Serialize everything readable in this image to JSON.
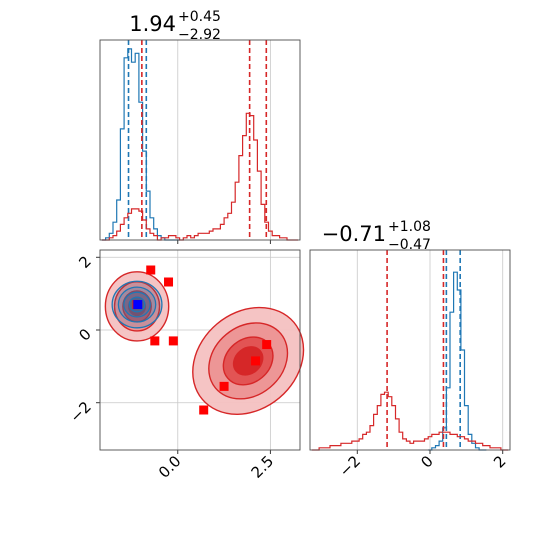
{
  "chart_data": [
    {
      "panel": "marginal-top-left",
      "type": "histogram",
      "title_value": "1.94",
      "title_upper": "+0.45",
      "title_lower": "−2.92",
      "xlim": [
        -2.1,
        3.3
      ],
      "grid": true,
      "series": [
        {
          "color": "#1f77b4",
          "bin_centers": [
            -2.0,
            -1.9,
            -1.8,
            -1.7,
            -1.6,
            -1.5,
            -1.4,
            -1.3,
            -1.2,
            -1.1,
            -1.0,
            -0.9,
            -0.8,
            -0.7,
            -0.6,
            -0.5,
            -0.4,
            -0.3,
            -0.2,
            -0.1,
            0.0
          ],
          "heights": [
            0.0,
            0.01,
            0.03,
            0.08,
            0.18,
            0.5,
            0.82,
            0.86,
            0.8,
            0.84,
            0.62,
            0.4,
            0.22,
            0.1,
            0.05,
            0.02,
            0.01,
            0.0,
            0.0,
            0.0,
            0.0
          ],
          "vlines": [
            -1.33,
            -0.85
          ]
        },
        {
          "color": "#d62728",
          "bin_centers": [
            -2.0,
            -1.9,
            -1.8,
            -1.7,
            -1.6,
            -1.5,
            -1.4,
            -1.3,
            -1.2,
            -1.1,
            -1.0,
            -0.9,
            -0.8,
            -0.7,
            -0.6,
            -0.5,
            -0.4,
            -0.3,
            -0.2,
            -0.1,
            0.0,
            0.1,
            0.2,
            0.3,
            0.4,
            0.5,
            0.6,
            0.7,
            0.8,
            0.9,
            1.0,
            1.1,
            1.2,
            1.3,
            1.4,
            1.5,
            1.6,
            1.7,
            1.8,
            1.9,
            2.0,
            2.1,
            2.2,
            2.3,
            2.4,
            2.5,
            2.6,
            2.7,
            2.8,
            2.9,
            3.0,
            3.1,
            3.2
          ],
          "heights": [
            0.0,
            0.0,
            0.01,
            0.02,
            0.04,
            0.07,
            0.1,
            0.12,
            0.14,
            0.14,
            0.13,
            0.09,
            0.05,
            0.03,
            0.02,
            0.0,
            0.01,
            0.01,
            0.02,
            0.02,
            0.01,
            0.0,
            0.01,
            0.02,
            0.01,
            0.02,
            0.03,
            0.03,
            0.03,
            0.04,
            0.05,
            0.05,
            0.07,
            0.1,
            0.12,
            0.17,
            0.26,
            0.38,
            0.47,
            0.57,
            0.56,
            0.45,
            0.31,
            0.16,
            0.08,
            0.04,
            0.02,
            0.02,
            0.01,
            0.01,
            0.0,
            0.0,
            0.0
          ],
          "vlines": [
            -0.97,
            1.94,
            2.39
          ]
        }
      ]
    },
    {
      "panel": "joint-bottom-left",
      "type": "contour",
      "xlim": [
        -2.1,
        3.3
      ],
      "ylim": [
        -3.3,
        2.2
      ],
      "xticks": [
        0.0,
        2.5
      ],
      "xtick_labels": [
        "0.0",
        "2.5"
      ],
      "yticks": [
        2,
        0,
        -2
      ],
      "ytick_labels": [
        "2",
        "0",
        "−2"
      ],
      "grid": true,
      "red_blob_upper": {
        "center": [
          -1.1,
          0.65
        ],
        "sx": 0.45,
        "sy": 0.5
      },
      "red_blob_lower": {
        "center": [
          1.9,
          -0.85
        ],
        "sx": 0.85,
        "sy": 0.7,
        "tilt_deg": 40
      },
      "blue_contour": {
        "center": [
          -1.1,
          0.7
        ],
        "sx": 0.42,
        "sy": 0.4
      },
      "red_markers": [
        [
          -0.73,
          1.65
        ],
        [
          -0.25,
          1.32
        ],
        [
          -1.1,
          0.7
        ],
        [
          -0.62,
          -0.3
        ],
        [
          -0.12,
          -0.3
        ],
        [
          2.1,
          -0.85
        ],
        [
          2.4,
          -0.4
        ],
        [
          1.25,
          -1.55
        ],
        [
          0.7,
          -2.2
        ]
      ],
      "blue_marker": [
        -1.08,
        0.7
      ]
    },
    {
      "panel": "marginal-bottom-right",
      "type": "histogram",
      "title_value": "−0.71",
      "title_upper": "+1.08",
      "title_lower": "−0.47",
      "xlim": [
        -3.3,
        2.2
      ],
      "xticks": [
        -2,
        0,
        2
      ],
      "xtick_labels": [
        "−2",
        "0",
        "2"
      ],
      "grid": true,
      "series": [
        {
          "color": "#1f77b4",
          "bin_centers": [
            0.0,
            0.1,
            0.2,
            0.3,
            0.4,
            0.5,
            0.6,
            0.7,
            0.8,
            0.9,
            1.0,
            1.1,
            1.2,
            1.3,
            1.4,
            1.5
          ],
          "heights": [
            0.0,
            0.01,
            0.02,
            0.04,
            0.1,
            0.28,
            0.62,
            0.8,
            0.72,
            0.45,
            0.2,
            0.07,
            0.03,
            0.01,
            0.0,
            0.0
          ],
          "vlines": [
            0.45,
            0.83
          ]
        },
        {
          "color": "#d62728",
          "bin_centers": [
            -3.2,
            -3.1,
            -3.0,
            -2.9,
            -2.8,
            -2.7,
            -2.6,
            -2.5,
            -2.4,
            -2.3,
            -2.2,
            -2.1,
            -2.0,
            -1.9,
            -1.8,
            -1.7,
            -1.6,
            -1.5,
            -1.4,
            -1.3,
            -1.2,
            -1.1,
            -1.0,
            -0.9,
            -0.8,
            -0.7,
            -0.6,
            -0.5,
            -0.4,
            -0.3,
            -0.2,
            -0.1,
            0.0,
            0.1,
            0.2,
            0.3,
            0.4,
            0.5,
            0.6,
            0.7,
            0.8,
            0.9,
            1.0,
            1.1,
            1.2,
            1.3,
            1.4,
            1.5,
            1.6,
            1.7,
            1.8,
            1.9,
            2.0,
            2.1
          ],
          "heights": [
            0.0,
            0.0,
            0.01,
            0.01,
            0.01,
            0.02,
            0.02,
            0.02,
            0.03,
            0.03,
            0.03,
            0.04,
            0.04,
            0.05,
            0.07,
            0.08,
            0.11,
            0.16,
            0.2,
            0.25,
            0.26,
            0.24,
            0.2,
            0.14,
            0.08,
            0.05,
            0.04,
            0.03,
            0.04,
            0.04,
            0.04,
            0.05,
            0.06,
            0.07,
            0.07,
            0.08,
            0.08,
            0.08,
            0.07,
            0.07,
            0.06,
            0.06,
            0.05,
            0.04,
            0.04,
            0.03,
            0.03,
            0.02,
            0.02,
            0.01,
            0.01,
            0.01,
            0.0,
            0.0
          ],
          "vlines": [
            -1.18,
            0.37
          ]
        }
      ]
    }
  ]
}
